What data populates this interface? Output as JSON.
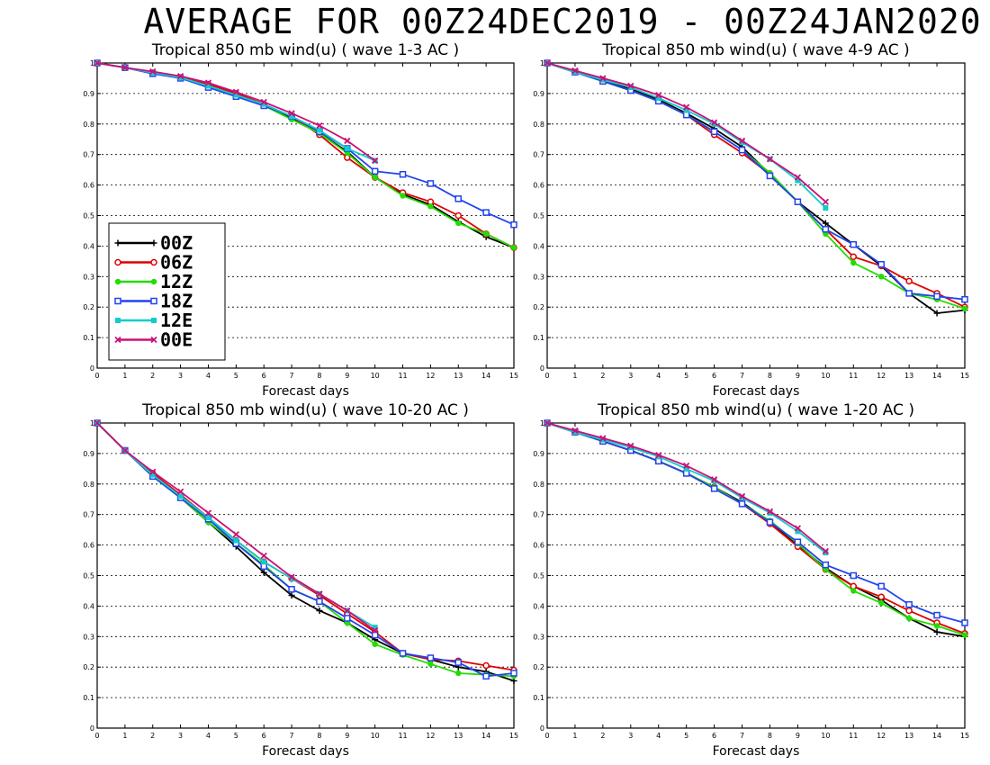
{
  "main_title": "AVERAGE FOR 00Z24DEC2019 - 00Z24JAN2020",
  "colors": {
    "00Z": "#000000",
    "06Z": "#e00000",
    "12Z": "#22dd00",
    "18Z": "#2244ee",
    "12E": "#11cccc",
    "00E": "#cc1177"
  },
  "legend": {
    "entries": [
      {
        "name": "00Z",
        "marker": "plus"
      },
      {
        "name": "06Z",
        "marker": "circle-open"
      },
      {
        "name": "12Z",
        "marker": "circle-filled"
      },
      {
        "name": "18Z",
        "marker": "square-open"
      },
      {
        "name": "12E",
        "marker": "square-filled"
      },
      {
        "name": "00E",
        "marker": "x"
      }
    ]
  },
  "chart_data": [
    {
      "type": "line",
      "title": "Tropical 850 mb wind(u) ( wave 1-3 AC )",
      "xlabel": "Forecast days",
      "ylabel": "",
      "xlim": [
        0,
        15
      ],
      "ylim": [
        0,
        1
      ],
      "x_ticks": [
        "0",
        "1",
        "2",
        "3",
        "4",
        "5",
        "6",
        "7",
        "8",
        "9",
        "10",
        "11",
        "12",
        "13",
        "14",
        "15"
      ],
      "y_ticks": [
        "0",
        "0.1",
        "0.2",
        "0.3",
        "0.4",
        "0.5",
        "0.6",
        "0.7",
        "0.8",
        "0.9",
        "1"
      ],
      "grid": "horizontal dotted",
      "legend_position": "left-middle",
      "series": [
        {
          "name": "00Z",
          "x": [
            0,
            1,
            2,
            3,
            4,
            5,
            6,
            7,
            8,
            9,
            10,
            11,
            12,
            13,
            14,
            15
          ],
          "values": [
            1,
            0.985,
            0.968,
            0.952,
            0.93,
            0.9,
            0.865,
            0.82,
            0.77,
            0.71,
            0.625,
            0.57,
            0.535,
            0.48,
            0.43,
            0.395
          ]
        },
        {
          "name": "06Z",
          "x": [
            0,
            1,
            2,
            3,
            4,
            5,
            6,
            7,
            8,
            9,
            10,
            11,
            12,
            13,
            14,
            15
          ],
          "values": [
            1,
            0.985,
            0.968,
            0.952,
            0.93,
            0.9,
            0.865,
            0.825,
            0.765,
            0.69,
            0.625,
            0.575,
            0.545,
            0.5,
            0.44,
            0.395
          ]
        },
        {
          "name": "12Z",
          "x": [
            0,
            1,
            2,
            3,
            4,
            5,
            6,
            7,
            8,
            9,
            10,
            11,
            12,
            13,
            14,
            15
          ],
          "values": [
            1,
            0.985,
            0.968,
            0.95,
            0.925,
            0.895,
            0.86,
            0.815,
            0.77,
            0.705,
            0.625,
            0.565,
            0.53,
            0.475,
            0.44,
            0.395
          ]
        },
        {
          "name": "18Z",
          "x": [
            0,
            1,
            2,
            3,
            4,
            5,
            6,
            7,
            8,
            9,
            10,
            11,
            12,
            13,
            14,
            15
          ],
          "values": [
            1,
            0.985,
            0.965,
            0.95,
            0.92,
            0.89,
            0.86,
            0.825,
            0.775,
            0.72,
            0.645,
            0.635,
            0.605,
            0.555,
            0.51,
            0.47
          ]
        },
        {
          "name": "12E",
          "x": [
            0,
            1,
            2,
            3,
            4,
            5,
            6,
            7,
            8,
            9,
            10
          ],
          "values": [
            1,
            0.985,
            0.968,
            0.952,
            0.925,
            0.895,
            0.865,
            0.825,
            0.78,
            0.72,
            0.68
          ]
        },
        {
          "name": "00E",
          "x": [
            0,
            1,
            2,
            3,
            4,
            5,
            6,
            7,
            8,
            9,
            10
          ],
          "values": [
            1,
            0.985,
            0.972,
            0.957,
            0.935,
            0.905,
            0.872,
            0.835,
            0.795,
            0.745,
            0.68
          ]
        }
      ]
    },
    {
      "type": "line",
      "title": "Tropical 850 mb wind(u) ( wave 4-9 AC )",
      "xlabel": "Forecast days",
      "ylabel": "",
      "xlim": [
        0,
        15
      ],
      "ylim": [
        0,
        1
      ],
      "x_ticks": [
        "0",
        "1",
        "2",
        "3",
        "4",
        "5",
        "6",
        "7",
        "8",
        "9",
        "10",
        "11",
        "12",
        "13",
        "14",
        "15"
      ],
      "y_ticks": [
        "0",
        "0.1",
        "0.2",
        "0.3",
        "0.4",
        "0.5",
        "0.6",
        "0.7",
        "0.8",
        "0.9",
        "1"
      ],
      "grid": "horizontal dotted",
      "series": [
        {
          "name": "00Z",
          "x": [
            0,
            1,
            2,
            3,
            4,
            5,
            6,
            7,
            8,
            9,
            10,
            11,
            12,
            13,
            14,
            15
          ],
          "values": [
            1,
            0.97,
            0.945,
            0.915,
            0.88,
            0.835,
            0.785,
            0.725,
            0.635,
            0.545,
            0.475,
            0.405,
            0.335,
            0.245,
            0.18,
            0.19
          ]
        },
        {
          "name": "06Z",
          "x": [
            0,
            1,
            2,
            3,
            4,
            5,
            6,
            7,
            8,
            9,
            10,
            11,
            12,
            13,
            14,
            15
          ],
          "values": [
            1,
            0.97,
            0.94,
            0.91,
            0.875,
            0.83,
            0.765,
            0.705,
            0.635,
            0.545,
            0.455,
            0.365,
            0.335,
            0.285,
            0.245,
            0.2
          ]
        },
        {
          "name": "12Z",
          "x": [
            0,
            1,
            2,
            3,
            4,
            5,
            6,
            7,
            8,
            9,
            10,
            11,
            12,
            13,
            14,
            15
          ],
          "values": [
            1,
            0.97,
            0.94,
            0.91,
            0.875,
            0.83,
            0.775,
            0.715,
            0.64,
            0.545,
            0.44,
            0.345,
            0.3,
            0.245,
            0.225,
            0.195
          ]
        },
        {
          "name": "18Z",
          "x": [
            0,
            1,
            2,
            3,
            4,
            5,
            6,
            7,
            8,
            9,
            10,
            11,
            12,
            13,
            14,
            15
          ],
          "values": [
            1,
            0.97,
            0.94,
            0.91,
            0.875,
            0.83,
            0.775,
            0.715,
            0.63,
            0.545,
            0.455,
            0.405,
            0.34,
            0.245,
            0.235,
            0.225
          ]
        },
        {
          "name": "12E",
          "x": [
            0,
            1,
            2,
            3,
            4,
            5,
            6,
            7,
            8,
            9,
            10
          ],
          "values": [
            1,
            0.97,
            0.945,
            0.92,
            0.885,
            0.845,
            0.8,
            0.74,
            0.685,
            0.615,
            0.525
          ]
        },
        {
          "name": "00E",
          "x": [
            0,
            1,
            2,
            3,
            4,
            5,
            6,
            7,
            8,
            9,
            10
          ],
          "values": [
            1,
            0.975,
            0.95,
            0.925,
            0.895,
            0.855,
            0.805,
            0.745,
            0.685,
            0.625,
            0.545
          ]
        }
      ]
    },
    {
      "type": "line",
      "title": "Tropical 850 mb wind(u) ( wave 10-20 AC )",
      "xlabel": "Forecast days",
      "ylabel": "",
      "xlim": [
        0,
        15
      ],
      "ylim": [
        0,
        1
      ],
      "x_ticks": [
        "0",
        "1",
        "2",
        "3",
        "4",
        "5",
        "6",
        "7",
        "8",
        "9",
        "10",
        "11",
        "12",
        "13",
        "14",
        "15"
      ],
      "y_ticks": [
        "0",
        "0.1",
        "0.2",
        "0.3",
        "0.4",
        "0.5",
        "0.6",
        "0.7",
        "0.8",
        "0.9",
        "1"
      ],
      "grid": "horizontal dotted",
      "series": [
        {
          "name": "00Z",
          "x": [
            0,
            1,
            2,
            3,
            4,
            5,
            6,
            7,
            8,
            9,
            10,
            11,
            12,
            13,
            14,
            15
          ],
          "values": [
            1,
            0.91,
            0.83,
            0.755,
            0.675,
            0.595,
            0.51,
            0.435,
            0.385,
            0.345,
            0.29,
            0.245,
            0.225,
            0.2,
            0.185,
            0.155
          ]
        },
        {
          "name": "06Z",
          "x": [
            0,
            1,
            2,
            3,
            4,
            5,
            6,
            7,
            8,
            9,
            10,
            11,
            12,
            13,
            14,
            15
          ],
          "values": [
            1,
            0.91,
            0.835,
            0.765,
            0.69,
            0.615,
            0.545,
            0.49,
            0.435,
            0.375,
            0.315,
            0.245,
            0.225,
            0.22,
            0.205,
            0.19
          ]
        },
        {
          "name": "12Z",
          "x": [
            0,
            1,
            2,
            3,
            4,
            5,
            6,
            7,
            8,
            9,
            10,
            11,
            12,
            13,
            14,
            15
          ],
          "values": [
            1,
            0.91,
            0.825,
            0.755,
            0.675,
            0.605,
            0.535,
            0.455,
            0.415,
            0.345,
            0.275,
            0.24,
            0.21,
            0.18,
            0.175,
            0.17
          ]
        },
        {
          "name": "18Z",
          "x": [
            0,
            1,
            2,
            3,
            4,
            5,
            6,
            7,
            8,
            9,
            10,
            11,
            12,
            13,
            14,
            15
          ],
          "values": [
            1,
            0.91,
            0.825,
            0.755,
            0.685,
            0.605,
            0.53,
            0.455,
            0.415,
            0.36,
            0.305,
            0.245,
            0.23,
            0.215,
            0.17,
            0.18
          ]
        },
        {
          "name": "12E",
          "x": [
            0,
            1,
            2,
            3,
            4,
            5,
            6,
            7,
            8,
            9,
            10
          ],
          "values": [
            1,
            0.91,
            0.83,
            0.76,
            0.69,
            0.615,
            0.545,
            0.49,
            0.44,
            0.385,
            0.33
          ]
        },
        {
          "name": "00E",
          "x": [
            0,
            1,
            2,
            3,
            4,
            5,
            6,
            7,
            8,
            9,
            10
          ],
          "values": [
            1,
            0.91,
            0.84,
            0.775,
            0.705,
            0.635,
            0.565,
            0.495,
            0.44,
            0.385,
            0.32
          ]
        }
      ]
    },
    {
      "type": "line",
      "title": "Tropical 850 mb wind(u) ( wave 1-20 AC )",
      "xlabel": "Forecast days",
      "ylabel": "",
      "xlim": [
        0,
        15
      ],
      "ylim": [
        0,
        1
      ],
      "x_ticks": [
        "0",
        "1",
        "2",
        "3",
        "4",
        "5",
        "6",
        "7",
        "8",
        "9",
        "10",
        "11",
        "12",
        "13",
        "14",
        "15"
      ],
      "y_ticks": [
        "0",
        "0.1",
        "0.2",
        "0.3",
        "0.4",
        "0.5",
        "0.6",
        "0.7",
        "0.8",
        "0.9",
        "1"
      ],
      "grid": "horizontal dotted",
      "series": [
        {
          "name": "00Z",
          "x": [
            0,
            1,
            2,
            3,
            4,
            5,
            6,
            7,
            8,
            9,
            10,
            11,
            12,
            13,
            14,
            15
          ],
          "values": [
            1,
            0.97,
            0.94,
            0.91,
            0.875,
            0.835,
            0.79,
            0.74,
            0.675,
            0.6,
            0.525,
            0.465,
            0.42,
            0.36,
            0.315,
            0.3
          ]
        },
        {
          "name": "06Z",
          "x": [
            0,
            1,
            2,
            3,
            4,
            5,
            6,
            7,
            8,
            9,
            10,
            11,
            12,
            13,
            14,
            15
          ],
          "values": [
            1,
            0.97,
            0.94,
            0.91,
            0.875,
            0.835,
            0.79,
            0.735,
            0.67,
            0.595,
            0.52,
            0.465,
            0.43,
            0.385,
            0.345,
            0.31
          ]
        },
        {
          "name": "12Z",
          "x": [
            0,
            1,
            2,
            3,
            4,
            5,
            6,
            7,
            8,
            9,
            10,
            11,
            12,
            13,
            14,
            15
          ],
          "values": [
            1,
            0.97,
            0.94,
            0.91,
            0.875,
            0.835,
            0.79,
            0.735,
            0.68,
            0.605,
            0.52,
            0.45,
            0.41,
            0.36,
            0.335,
            0.305
          ]
        },
        {
          "name": "18Z",
          "x": [
            0,
            1,
            2,
            3,
            4,
            5,
            6,
            7,
            8,
            9,
            10,
            11,
            12,
            13,
            14,
            15
          ],
          "values": [
            1,
            0.97,
            0.94,
            0.91,
            0.875,
            0.835,
            0.785,
            0.735,
            0.675,
            0.61,
            0.535,
            0.5,
            0.465,
            0.405,
            0.37,
            0.345
          ]
        },
        {
          "name": "12E",
          "x": [
            0,
            1,
            2,
            3,
            4,
            5,
            6,
            7,
            8,
            9,
            10
          ],
          "values": [
            1,
            0.97,
            0.945,
            0.92,
            0.89,
            0.85,
            0.81,
            0.755,
            0.705,
            0.645,
            0.575
          ]
        },
        {
          "name": "00E",
          "x": [
            0,
            1,
            2,
            3,
            4,
            5,
            6,
            7,
            8,
            9,
            10
          ],
          "values": [
            1,
            0.975,
            0.95,
            0.925,
            0.895,
            0.86,
            0.815,
            0.76,
            0.71,
            0.655,
            0.58
          ]
        }
      ]
    }
  ]
}
